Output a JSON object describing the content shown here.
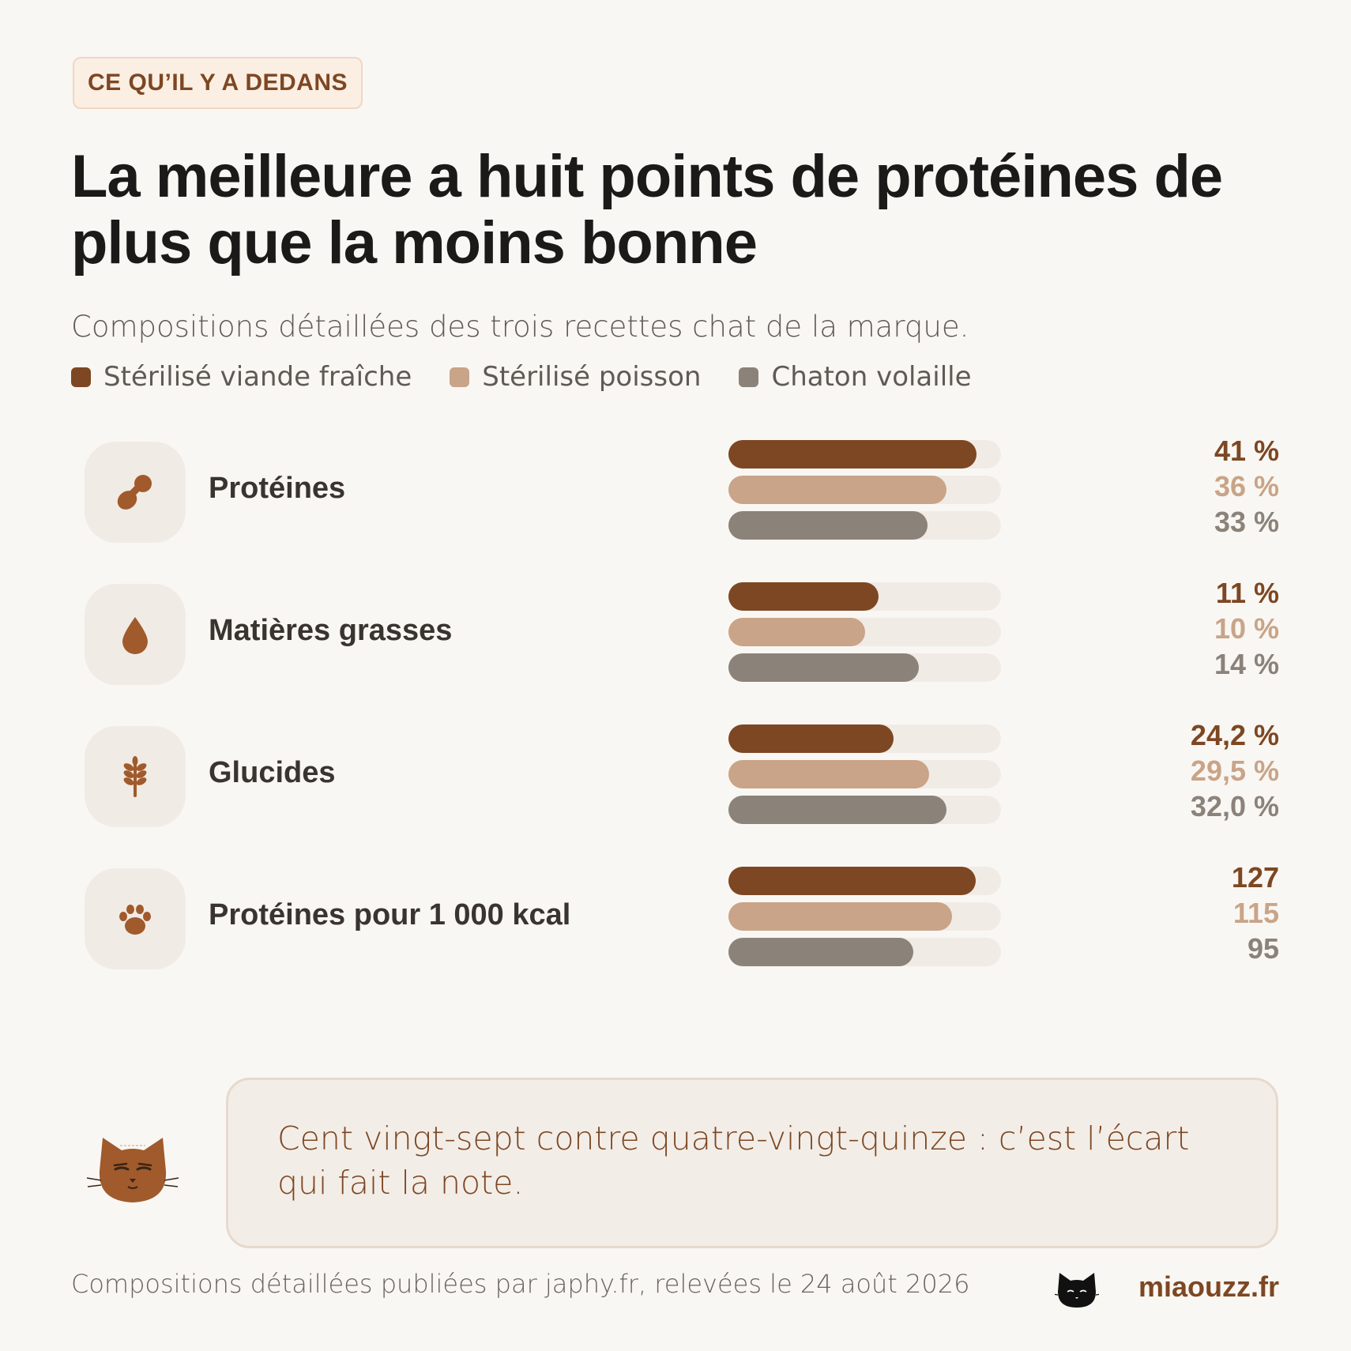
{
  "header": {
    "tag": "CE QU’IL Y A DEDANS",
    "title": "La meilleure a huit points de protéines de plus que la moins bonne",
    "subtitle": "Compositions détaillées des trois recettes chat de la marque."
  },
  "colors": {
    "series_1": "#7d4723",
    "series_2": "#c9a488",
    "series_3": "#8b827a",
    "track": "#f1ebe5",
    "accent": "#7d4723",
    "icon": "#a05a2c"
  },
  "chart_data": {
    "type": "bar",
    "orientation": "horizontal",
    "series_names": [
      "Stérilisé viande fraîche",
      "Stérilisé poisson",
      "Chaton volaille"
    ],
    "categories": [
      {
        "label": "Protéines",
        "icon": "drumstick-icon",
        "values": [
          41,
          36,
          33
        ],
        "value_labels": [
          "41 %",
          "36 %",
          "33 %"
        ],
        "fill": [
          0.91,
          0.8,
          0.73
        ]
      },
      {
        "label": "Matières grasses",
        "icon": "drop-icon",
        "values": [
          11,
          10,
          14
        ],
        "value_labels": [
          "11 %",
          "10 %",
          "14 %"
        ],
        "fill": [
          0.55,
          0.5,
          0.7
        ]
      },
      {
        "label": "Glucides",
        "icon": "wheat-icon",
        "values": [
          24.2,
          29.5,
          32.0
        ],
        "value_labels": [
          "24,2 %",
          "29,5 %",
          "32,0 %"
        ],
        "fill": [
          0.605,
          0.737,
          0.8
        ]
      },
      {
        "label": "Protéines pour 1 000 kcal",
        "icon": "paw-icon",
        "values": [
          127,
          115,
          95
        ],
        "value_labels": [
          "127",
          "115",
          "95"
        ],
        "fill": [
          0.907,
          0.821,
          0.679
        ]
      }
    ]
  },
  "quote": {
    "text": "Cent vingt-sept contre quatre-vingt-quinze : c’est l’écart qui fait la note."
  },
  "footer": {
    "source": "Compositions détaillées publiées par japhy.fr, relevées le 24 août 2026",
    "brand": "miaouzz.fr"
  }
}
